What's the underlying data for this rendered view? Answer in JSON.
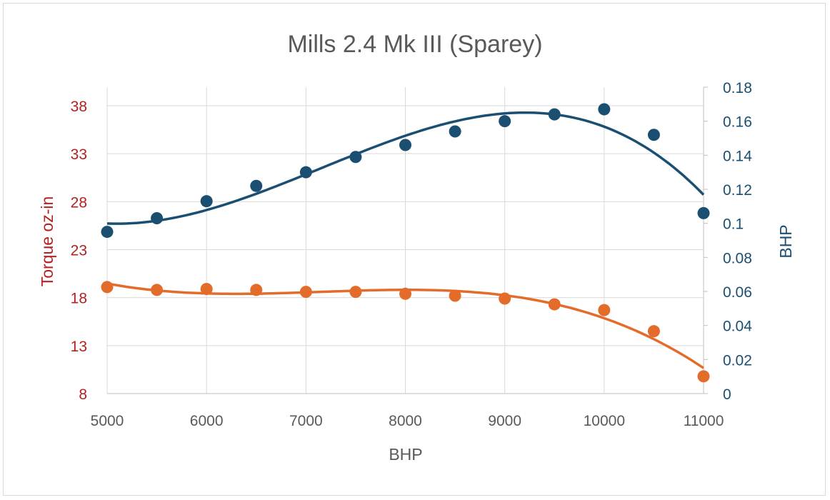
{
  "chart_data": {
    "type": "scatter",
    "title": "Mills 2.4 Mk III (Sparey)",
    "xlabel": "BHP",
    "ylabel_left": "Torque oz-in",
    "ylabel_right": "BHP",
    "x_range": [
      5000,
      11000
    ],
    "x_ticks": [
      "5000",
      "6000",
      "7000",
      "8000",
      "9000",
      "10000",
      "11000"
    ],
    "y_left_range": [
      8,
      40
    ],
    "y_left_ticks": [
      "8",
      "13",
      "18",
      "23",
      "28",
      "33",
      "38"
    ],
    "y_right_range": [
      0,
      0.18
    ],
    "y_right_ticks": [
      "0",
      "0.02",
      "0.04",
      "0.06",
      "0.08",
      "0.1",
      "0.12",
      "0.14",
      "0.16",
      "0.18"
    ],
    "grid": true,
    "trendlines": true,
    "colors": {
      "torque": "#E46C2B",
      "bhp": "#1B4F72",
      "left_axis_text": "#B22222",
      "right_axis_text": "#1B4F72"
    },
    "series": [
      {
        "axis": "left",
        "x": [
          5000,
          5500,
          6000,
          6500,
          7000,
          7500,
          8000,
          8500,
          9000,
          9500,
          10000,
          10500,
          11000
        ],
        "values": [
          19.1,
          18.8,
          18.9,
          18.8,
          18.6,
          18.6,
          18.4,
          18.2,
          17.9,
          17.3,
          16.7,
          14.5,
          9.8
        ]
      },
      {
        "axis": "right",
        "x": [
          5000,
          5500,
          6000,
          6500,
          7000,
          7500,
          8000,
          8500,
          9000,
          9500,
          10000,
          10500,
          11000
        ],
        "values": [
          0.095,
          0.103,
          0.113,
          0.122,
          0.13,
          0.139,
          0.146,
          0.154,
          0.16,
          0.164,
          0.167,
          0.152,
          0.106
        ]
      }
    ]
  }
}
